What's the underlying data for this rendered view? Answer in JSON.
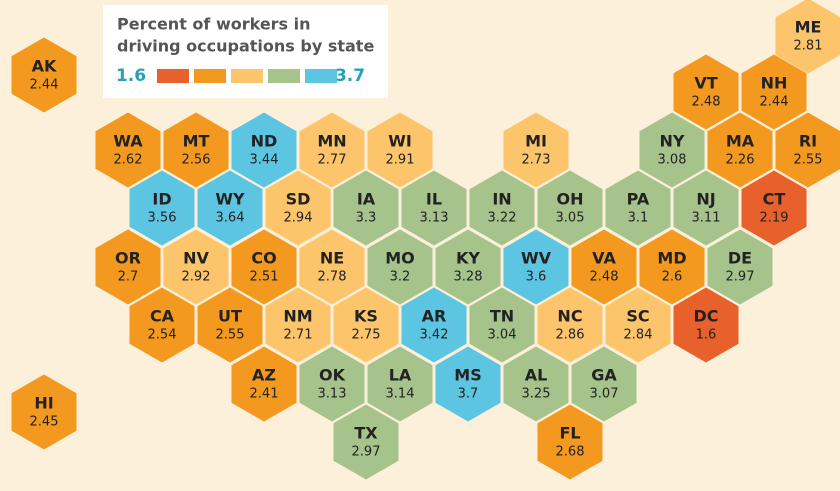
{
  "title_lines": [
    "Percent of workers in",
    "driving occupations by state"
  ],
  "legend": {
    "min_label": "1.6",
    "max_label": "3.7",
    "colors": [
      "#e8612c",
      "#f4991f",
      "#fdc56b",
      "#a5c38b",
      "#5cc5e2"
    ]
  },
  "states": [
    {
      "abbr": "AK",
      "value": 2.44,
      "color": "#f4991f"
    },
    {
      "abbr": "ME",
      "value": 2.81,
      "color": "#fdc56b"
    },
    {
      "abbr": "VT",
      "value": 2.48,
      "color": "#f4991f"
    },
    {
      "abbr": "NH",
      "value": 2.44,
      "color": "#f4991f"
    },
    {
      "abbr": "WA",
      "value": 2.62,
      "color": "#f4991f"
    },
    {
      "abbr": "MT",
      "value": 2.56,
      "color": "#f4991f"
    },
    {
      "abbr": "ND",
      "value": 3.44,
      "color": "#5cc5e2"
    },
    {
      "abbr": "MN",
      "value": 2.77,
      "color": "#fdc56b"
    },
    {
      "abbr": "WI",
      "value": 2.91,
      "color": "#fdc56b"
    },
    {
      "abbr": "MI",
      "value": 2.73,
      "color": "#fdc56b"
    },
    {
      "abbr": "NY",
      "value": 3.08,
      "color": "#a5c38b"
    },
    {
      "abbr": "MA",
      "value": 2.26,
      "color": "#f4991f"
    },
    {
      "abbr": "RI",
      "value": 2.55,
      "color": "#f4991f"
    },
    {
      "abbr": "ID",
      "value": 3.56,
      "color": "#5cc5e2"
    },
    {
      "abbr": "WY",
      "value": 3.64,
      "color": "#5cc5e2"
    },
    {
      "abbr": "SD",
      "value": 2.94,
      "color": "#fdc56b"
    },
    {
      "abbr": "IA",
      "value": 3.3,
      "color": "#a5c38b"
    },
    {
      "abbr": "IL",
      "value": 3.13,
      "color": "#a5c38b"
    },
    {
      "abbr": "IN",
      "value": 3.22,
      "color": "#a5c38b"
    },
    {
      "abbr": "OH",
      "value": 3.05,
      "color": "#a5c38b"
    },
    {
      "abbr": "PA",
      "value": 3.1,
      "color": "#a5c38b"
    },
    {
      "abbr": "NJ",
      "value": 3.11,
      "color": "#a5c38b"
    },
    {
      "abbr": "CT",
      "value": 2.19,
      "color": "#e8612c"
    },
    {
      "abbr": "OR",
      "value": 2.7,
      "color": "#f4991f"
    },
    {
      "abbr": "NV",
      "value": 2.92,
      "color": "#fdc56b"
    },
    {
      "abbr": "CO",
      "value": 2.51,
      "color": "#f4991f"
    },
    {
      "abbr": "NE",
      "value": 2.78,
      "color": "#fdc56b"
    },
    {
      "abbr": "MO",
      "value": 3.2,
      "color": "#a5c38b"
    },
    {
      "abbr": "KY",
      "value": 3.28,
      "color": "#a5c38b"
    },
    {
      "abbr": "WV",
      "value": 3.6,
      "color": "#5cc5e2"
    },
    {
      "abbr": "VA",
      "value": 2.48,
      "color": "#f4991f"
    },
    {
      "abbr": "MD",
      "value": 2.6,
      "color": "#f4991f"
    },
    {
      "abbr": "DE",
      "value": 2.97,
      "color": "#a5c38b"
    },
    {
      "abbr": "CA",
      "value": 2.54,
      "color": "#f4991f"
    },
    {
      "abbr": "UT",
      "value": 2.55,
      "color": "#f4991f"
    },
    {
      "abbr": "NM",
      "value": 2.71,
      "color": "#fdc56b"
    },
    {
      "abbr": "KS",
      "value": 2.75,
      "color": "#fdc56b"
    },
    {
      "abbr": "AR",
      "value": 3.42,
      "color": "#5cc5e2"
    },
    {
      "abbr": "TN",
      "value": 3.04,
      "color": "#a5c38b"
    },
    {
      "abbr": "NC",
      "value": 2.86,
      "color": "#fdc56b"
    },
    {
      "abbr": "SC",
      "value": 2.84,
      "color": "#fdc56b"
    },
    {
      "abbr": "DC",
      "value": 1.6,
      "color": "#e8612c"
    },
    {
      "abbr": "AZ",
      "value": 2.41,
      "color": "#f4991f"
    },
    {
      "abbr": "OK",
      "value": 3.13,
      "color": "#a5c38b"
    },
    {
      "abbr": "LA",
      "value": 3.14,
      "color": "#a5c38b"
    },
    {
      "abbr": "MS",
      "value": 3.7,
      "color": "#5cc5e2"
    },
    {
      "abbr": "AL",
      "value": 3.25,
      "color": "#a5c38b"
    },
    {
      "abbr": "GA",
      "value": 3.07,
      "color": "#a5c38b"
    },
    {
      "abbr": "TX",
      "value": 2.97,
      "color": "#a5c38b"
    },
    {
      "abbr": "FL",
      "value": 2.68,
      "color": "#f4991f"
    },
    {
      "abbr": "HI",
      "value": 2.45,
      "color": "#f4991f"
    }
  ]
}
